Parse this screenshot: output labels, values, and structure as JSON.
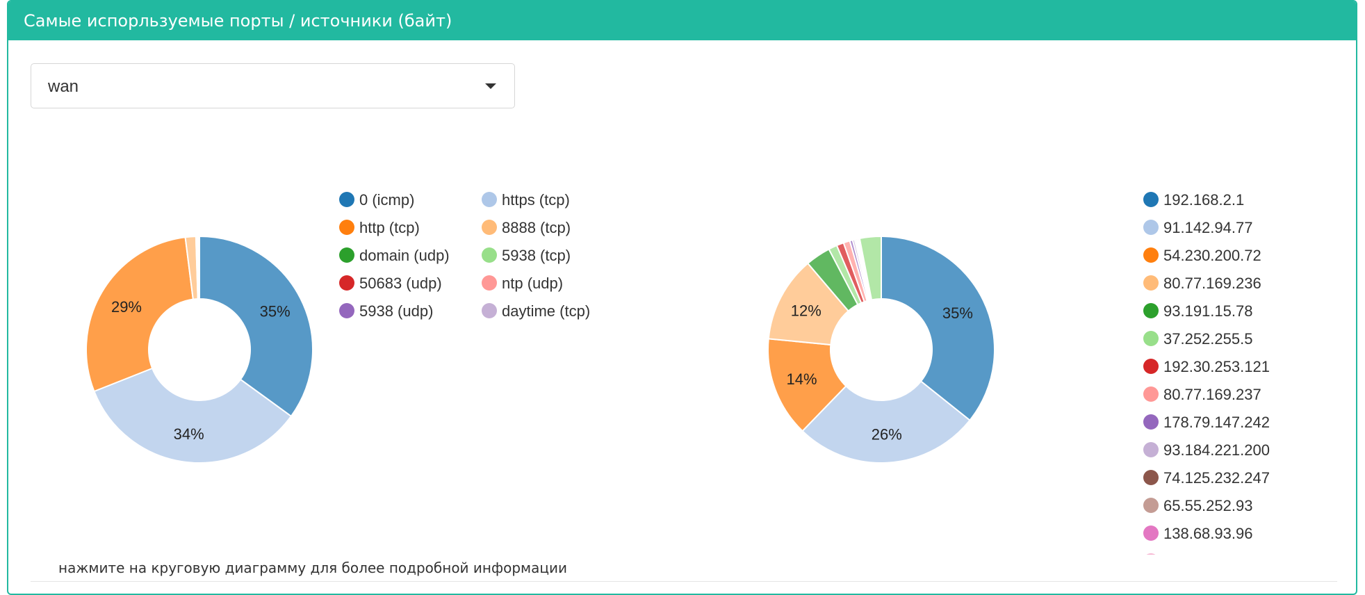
{
  "panel": {
    "title": "Самые испорльзуемые порты / источники (байт)",
    "accent_color": "#22b9a0"
  },
  "interface_select": {
    "value": "wan",
    "icon": "caret-down-icon"
  },
  "hint": "нажмите на круговую диаграмму для более подробной информации",
  "chart_data": [
    {
      "type": "pie",
      "name": "ports",
      "labels": [
        "0 (icmp)",
        "https (tcp)",
        "http (tcp)",
        "8888 (tcp)",
        "domain (udp)",
        "5938 (tcp)",
        "50683 (udp)",
        "ntp (udp)",
        "5938 (udp)",
        "daytime (tcp)"
      ],
      "values": [
        35,
        34,
        29,
        1.5,
        0.2,
        0.1,
        0.1,
        0.05,
        0.03,
        0.02
      ],
      "colors": [
        "#1f77b4",
        "#aec7e8",
        "#ff7f0e",
        "#ffbb78",
        "#2ca02c",
        "#98df8a",
        "#d62728",
        "#ff9896",
        "#9467bd",
        "#c5b0d5"
      ],
      "data_labels": [
        "35%",
        "34%",
        "29%",
        "",
        "",
        "",
        "",
        "",
        "",
        ""
      ],
      "legend": "right"
    },
    {
      "type": "pie",
      "name": "sources",
      "labels": [
        "192.168.2.1",
        "91.142.94.77",
        "54.230.200.72",
        "80.77.169.236",
        "93.191.15.78",
        "37.252.255.5",
        "192.30.253.121",
        "80.77.169.237",
        "178.79.147.242",
        "93.184.221.200",
        "74.125.232.247",
        "65.55.252.93",
        "138.68.93.96",
        "",
        ""
      ],
      "values": [
        35,
        26,
        14,
        12,
        3.5,
        1.2,
        1.0,
        0.9,
        0.4,
        0.3,
        0.2,
        0.2,
        0.2,
        0.1,
        3.0
      ],
      "colors": [
        "#1f77b4",
        "#aec7e8",
        "#ff7f0e",
        "#ffbb78",
        "#2ca02c",
        "#98df8a",
        "#d62728",
        "#ff9896",
        "#9467bd",
        "#c5b0d5",
        "#8c564b",
        "#c49c94",
        "#e377c2",
        "#f7b6d2",
        "#98df8a"
      ],
      "data_labels": [
        "35%",
        "26%",
        "14%",
        "12%",
        "",
        "",
        "",
        "",
        "",
        "",
        "",
        "",
        "",
        "",
        ""
      ],
      "legend": "right"
    }
  ]
}
